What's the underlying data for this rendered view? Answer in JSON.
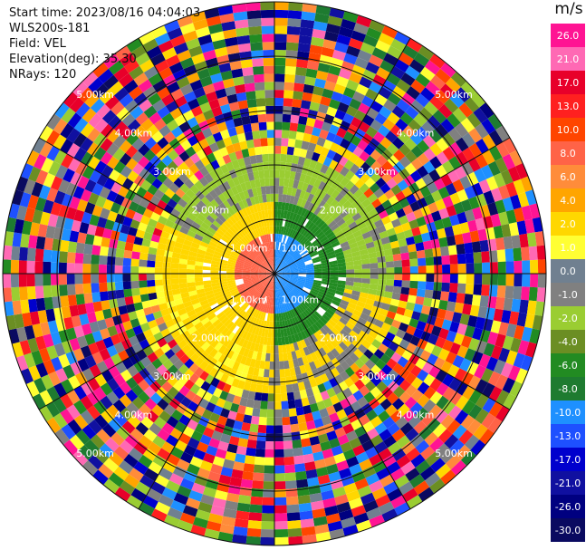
{
  "info": {
    "start_time": "Start time: 2023/08/16 04:04:03",
    "instrument": "WLS200s-181",
    "field": "Field: VEL",
    "elevation": "Elevation(deg): 35.30",
    "nrays": "NRays: 120"
  },
  "range_labels": [
    "1.00km",
    "2.00km",
    "3.00km",
    "4.00km",
    "5.00km",
    "1.00km",
    "2.00km",
    "3.00km",
    "4.00km",
    "5.00km",
    "1.00km",
    "2.00km",
    "3.00km",
    "4.00km",
    "5.00km",
    "1.00km",
    "2.00km",
    "3.00km",
    "4.00km",
    "5.00km"
  ],
  "colorbar": {
    "unit": "m/s",
    "ticks": [
      "26.0",
      "21.0",
      "17.0",
      "13.0",
      "10.0",
      "8.0",
      "6.0",
      "4.0",
      "2.0",
      "1.0",
      "0.0",
      "-1.0",
      "-2.0",
      "-4.0",
      "-6.0",
      "-8.0",
      "-10.0",
      "-13.0",
      "-17.0",
      "-21.0",
      "-26.0",
      "-30.0"
    ],
    "colors": [
      "#ff1493",
      "#ff69b4",
      "#e8002a",
      "#ff2020",
      "#ff4500",
      "#ff6347",
      "#ff8c3a",
      "#ffa500",
      "#ffd700",
      "#ffff33",
      "#708090",
      "#808080",
      "#9acd32",
      "#6b8e23",
      "#228b22",
      "#1e7b30",
      "#1e90ff",
      "#1e50ff",
      "#0000cd",
      "#1010a0",
      "#000080",
      "#0a0a60"
    ]
  }
}
